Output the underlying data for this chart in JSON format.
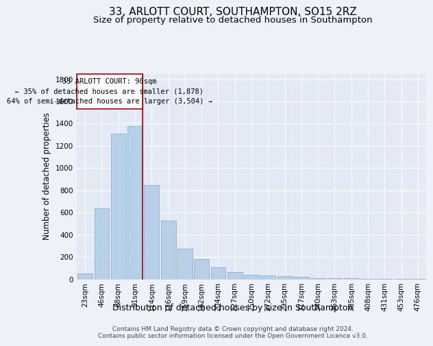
{
  "title": "33, ARLOTT COURT, SOUTHAMPTON, SO15 2RZ",
  "subtitle": "Size of property relative to detached houses in Southampton",
  "xlabel": "Distribution of detached houses by size in Southampton",
  "ylabel": "Number of detached properties",
  "footnote": "Contains HM Land Registry data © Crown copyright and database right 2024.\nContains public sector information licensed under the Open Government Licence v3.0.",
  "bar_labels": [
    "23sqm",
    "46sqm",
    "68sqm",
    "91sqm",
    "114sqm",
    "136sqm",
    "159sqm",
    "182sqm",
    "204sqm",
    "227sqm",
    "250sqm",
    "272sqm",
    "295sqm",
    "317sqm",
    "340sqm",
    "363sqm",
    "385sqm",
    "408sqm",
    "431sqm",
    "453sqm",
    "476sqm"
  ],
  "bar_values": [
    50,
    640,
    1310,
    1380,
    850,
    530,
    275,
    185,
    105,
    65,
    40,
    35,
    30,
    20,
    10,
    10,
    8,
    5,
    3,
    2,
    2
  ],
  "bar_color": "#b8cfe8",
  "bar_edge_color": "#7aaad0",
  "highlight_bar_index": 3,
  "highlight_line_color": "#bb0000",
  "annotation_line1": "33 ARLOTT COURT: 90sqm",
  "annotation_line2": "← 35% of detached houses are smaller (1,878)",
  "annotation_line3": "64% of semi-detached houses are larger (3,504) →",
  "annotation_box_color": "#bb0000",
  "ylim": [
    0,
    1850
  ],
  "yticks": [
    0,
    200,
    400,
    600,
    800,
    1000,
    1200,
    1400,
    1600,
    1800
  ],
  "bg_color": "#eef2f8",
  "plot_bg_color": "#e4eaf5",
  "grid_color": "#ffffff",
  "title_fontsize": 11,
  "subtitle_fontsize": 9.5,
  "tick_fontsize": 7.5,
  "ylabel_fontsize": 8.5,
  "xlabel_fontsize": 9,
  "annotation_fontsize": 7.5,
  "footnote_fontsize": 6.5
}
